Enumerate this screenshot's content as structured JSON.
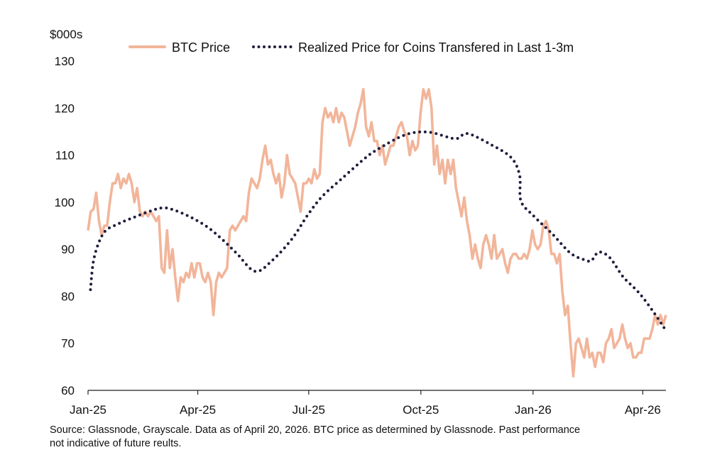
{
  "chart_data": {
    "type": "line",
    "ylabel": "$000s",
    "ylim": [
      60,
      130
    ],
    "yticks": [
      60,
      70,
      80,
      90,
      100,
      110,
      120,
      130
    ],
    "x_unit": "days since 2025-01-01",
    "xlim": [
      0,
      474
    ],
    "xticks": [
      {
        "label": "Jan-25",
        "day": 0
      },
      {
        "label": "Apr-25",
        "day": 90
      },
      {
        "label": "Jul-25",
        "day": 181
      },
      {
        "label": "Oct-25",
        "day": 273
      },
      {
        "label": "Jan-26",
        "day": 365
      },
      {
        "label": "Apr-26",
        "day": 455
      }
    ],
    "grid": false,
    "legend_position": "top",
    "series": [
      {
        "name": "BTC Price",
        "color": "#f2b59a",
        "style": "solid",
        "start_day": 0,
        "end_day": 474,
        "values": [
          94,
          98,
          98.5,
          102,
          96,
          93,
          95,
          95,
          100,
          104,
          104,
          106,
          103,
          105,
          104,
          106,
          104,
          100,
          103,
          98,
          97,
          98,
          97,
          98,
          97,
          96,
          97,
          86,
          85,
          94,
          86,
          90,
          84,
          79,
          84,
          83,
          85,
          84,
          87,
          84,
          87,
          87,
          84,
          83,
          85,
          83,
          76,
          83,
          85,
          84,
          85,
          86,
          94,
          95,
          94,
          95,
          96,
          97,
          96,
          102,
          105,
          104,
          103,
          105,
          109,
          112,
          108,
          109,
          106,
          104,
          106,
          101,
          104,
          110,
          106,
          105,
          104,
          101,
          98,
          104,
          104,
          105,
          104,
          107,
          105,
          106,
          117,
          120,
          118,
          119,
          117,
          120,
          117,
          119,
          118,
          115,
          112,
          114,
          116,
          119,
          121,
          124,
          116,
          114,
          117,
          113,
          113,
          110,
          112,
          108,
          110,
          112,
          112,
          114,
          116,
          117,
          115,
          114,
          110,
          113,
          111,
          112,
          119,
          124,
          122,
          124,
          120,
          108,
          112,
          106,
          109,
          104,
          109,
          106,
          109,
          103,
          100,
          97,
          101,
          96,
          93,
          88,
          91,
          88,
          86,
          91,
          93,
          91,
          88,
          93,
          88,
          89,
          90,
          87,
          85,
          88,
          89,
          89,
          88,
          88,
          89,
          88,
          90,
          94,
          91,
          90,
          91,
          95,
          96,
          94,
          89,
          89,
          87,
          89,
          81,
          76,
          78,
          70,
          63,
          70,
          71,
          69,
          67,
          71,
          67,
          68,
          65,
          68,
          68,
          66,
          70,
          71,
          73,
          69,
          70,
          71,
          74,
          71,
          69,
          70,
          67,
          67,
          68,
          68,
          71,
          71,
          71,
          73,
          76,
          74,
          76,
          74,
          76
        ]
      },
      {
        "name": "Realized Price for Coins Transfered in Last 1-3m",
        "color": "#1f1d3d",
        "style": "dotted",
        "points": [
          [
            2,
            81.4
          ],
          [
            5,
            88.2
          ],
          [
            13,
            93.5
          ],
          [
            25,
            95.4
          ],
          [
            37,
            96.7
          ],
          [
            52,
            98.2
          ],
          [
            62,
            98.8
          ],
          [
            72,
            98.2
          ],
          [
            85,
            96.7
          ],
          [
            98,
            94.7
          ],
          [
            110,
            92.1
          ],
          [
            122,
            89.1
          ],
          [
            137,
            85.3
          ],
          [
            151,
            87.6
          ],
          [
            167,
            92.1
          ],
          [
            180,
            97.2
          ],
          [
            192,
            101.2
          ],
          [
            209,
            105.2
          ],
          [
            227,
            109.3
          ],
          [
            238,
            111.3
          ],
          [
            260,
            114.3
          ],
          [
            279,
            114.9
          ],
          [
            301,
            113.5
          ],
          [
            311,
            114.6
          ],
          [
            330,
            112.3
          ],
          [
            347,
            109.5
          ],
          [
            354,
            105.7
          ],
          [
            355,
            100.3
          ],
          [
            365,
            97.2
          ],
          [
            381,
            93.2
          ],
          [
            396,
            89.1
          ],
          [
            409,
            87.6
          ],
          [
            413,
            87.6
          ],
          [
            419,
            89.4
          ],
          [
            428,
            88.2
          ],
          [
            439,
            84.1
          ],
          [
            452,
            80.7
          ],
          [
            464,
            76.6
          ],
          [
            473,
            73.1
          ]
        ]
      }
    ]
  },
  "footnote": {
    "line1": "Source: Glassnode, Grayscale. Data as of April 20, 2026. BTC price as determined by Glassnode. Past performance",
    "line2": "not indicative of future reults."
  }
}
